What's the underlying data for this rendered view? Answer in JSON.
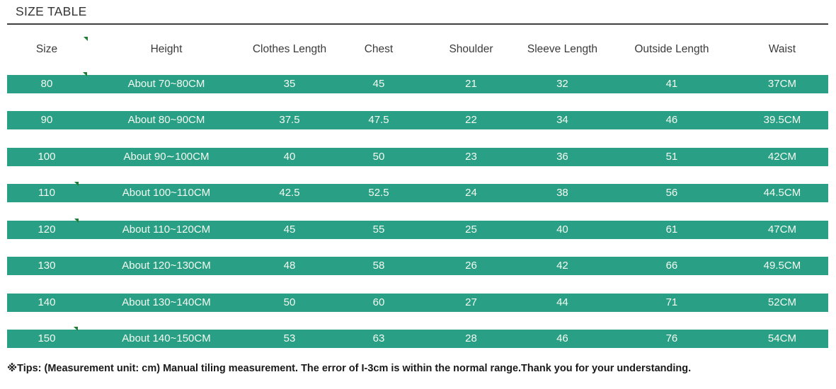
{
  "title": "SIZE TABLE",
  "table": {
    "columns": [
      "Size",
      "Height",
      "Clothes Length",
      "Chest",
      "Shoulder",
      "Sleeve Length",
      "Outside Length",
      "Waist"
    ],
    "rows": [
      {
        "cells": [
          "80",
          "About 70~80CM",
          "35",
          "45",
          "21",
          "32",
          "41",
          "37CM"
        ]
      },
      {
        "cells": [
          "90",
          "About 80~90CM",
          "37.5",
          "47.5",
          "22",
          "34",
          "46",
          "39.5CM"
        ]
      },
      {
        "cells": [
          "100",
          "About 90∼100CM",
          "40",
          "50",
          "23",
          "36",
          "51",
          "42CM"
        ]
      },
      {
        "cells": [
          "110",
          "About 100~110CM",
          "42.5",
          "52.5",
          "24",
          "38",
          "56",
          "44.5CM"
        ]
      },
      {
        "cells": [
          "120",
          "About 110~120CM",
          "45",
          "55",
          "25",
          "40",
          "61",
          "47CM"
        ]
      },
      {
        "cells": [
          "130",
          "About 120~130CM",
          "48",
          "58",
          "26",
          "42",
          "66",
          "49.5CM"
        ]
      },
      {
        "cells": [
          "140",
          "About 130~140CM",
          "50",
          "60",
          "27",
          "44",
          "71",
          "52CM"
        ]
      },
      {
        "cells": [
          "150",
          "About 140~150CM",
          "53",
          "63",
          "28",
          "46",
          "76",
          "54CM"
        ]
      }
    ]
  },
  "tips": "※Tips: (Measurement unit: cm) Manual tiling measurement. The error of I-3cm is within the normal range.Thank you for your understanding.",
  "colors": {
    "row_green": "#29a086",
    "row_text": "#f5faf0",
    "heading_text": "#3b3b3b",
    "marker_green": "#1e7d33"
  }
}
